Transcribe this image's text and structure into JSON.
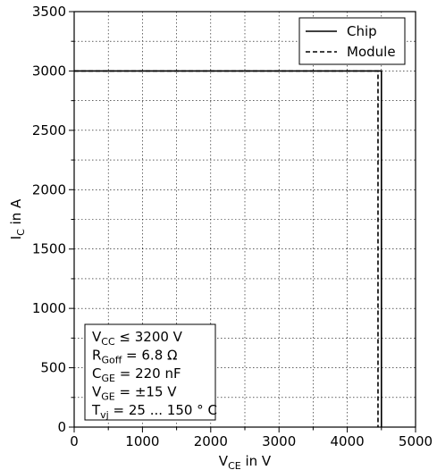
{
  "chart_data": {
    "type": "line",
    "title": "",
    "xlabel": {
      "main": "V",
      "sub": "CE",
      "rest": " in V"
    },
    "ylabel": {
      "main": "I",
      "sub": "C",
      "rest": " in A"
    },
    "xlim": [
      0,
      5000
    ],
    "ylim": [
      0,
      3500
    ],
    "xticks": [
      0,
      1000,
      2000,
      3000,
      4000,
      5000
    ],
    "yticks": [
      0,
      500,
      1000,
      1500,
      2000,
      2500,
      3000,
      3500
    ],
    "x_minor_step": 500,
    "y_minor_step": 250,
    "grid": true,
    "legend_position": "top-right",
    "series": [
      {
        "name": "Chip",
        "style": "solid",
        "color": "#000000",
        "points": [
          [
            0,
            3000
          ],
          [
            4500,
            3000
          ],
          [
            4500,
            0
          ]
        ]
      },
      {
        "name": "Module",
        "style": "dashed",
        "color": "#000000",
        "points": [
          [
            0,
            3000
          ],
          [
            4450,
            3000
          ],
          [
            4450,
            0
          ]
        ]
      }
    ],
    "annotation_lines": [
      {
        "main": "V",
        "sub": "CC",
        "rest": " ≤ 3200 V"
      },
      {
        "main": "R",
        "sub": "Goff",
        "rest": " = 6.8 Ω"
      },
      {
        "main": "C",
        "sub": "GE",
        "rest": " = 220 nF"
      },
      {
        "main": "V",
        "sub": "GE",
        "rest": " = ±15 V"
      },
      {
        "main": "T",
        "sub": "vj",
        "rest": " = 25 ... 150 ° C"
      }
    ]
  }
}
